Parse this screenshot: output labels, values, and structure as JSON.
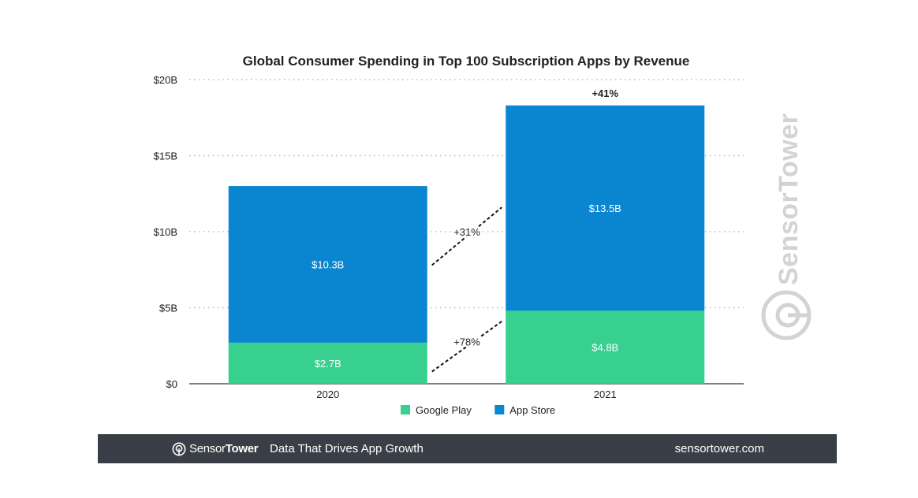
{
  "chart_data": {
    "type": "bar",
    "stacked": true,
    "title": "Global Consumer Spending in Top 100 Subscription Apps by Revenue",
    "categories": [
      "2020",
      "2021"
    ],
    "series": [
      {
        "name": "Google Play",
        "values": [
          2.7,
          4.8
        ],
        "labels": [
          "$2.7B",
          "$4.8B"
        ],
        "color": "#37d08f"
      },
      {
        "name": "App Store",
        "values": [
          10.3,
          13.5
        ],
        "labels": [
          "$10.3B",
          "$13.5B"
        ],
        "color": "#0a86d0"
      }
    ],
    "ylim": [
      0,
      20
    ],
    "yticks": [
      0,
      5,
      10,
      15,
      20
    ],
    "ytick_labels": [
      "$0",
      "$5B",
      "$10B",
      "$15B",
      "$20B"
    ],
    "grid": true,
    "legend": "bottom-center",
    "annotations": {
      "total_growth": "+41%",
      "app_store_growth": "+31%",
      "google_play_growth": "+78%"
    }
  },
  "watermark": {
    "text": "SensorTower",
    "icon": "sensortower-logo-icon"
  },
  "footer": {
    "brand_light": "Sensor",
    "brand_bold": "Tower",
    "tagline": "Data That Drives App Growth",
    "url": "sensortower.com",
    "logo_icon": "sensortower-logo-icon"
  }
}
